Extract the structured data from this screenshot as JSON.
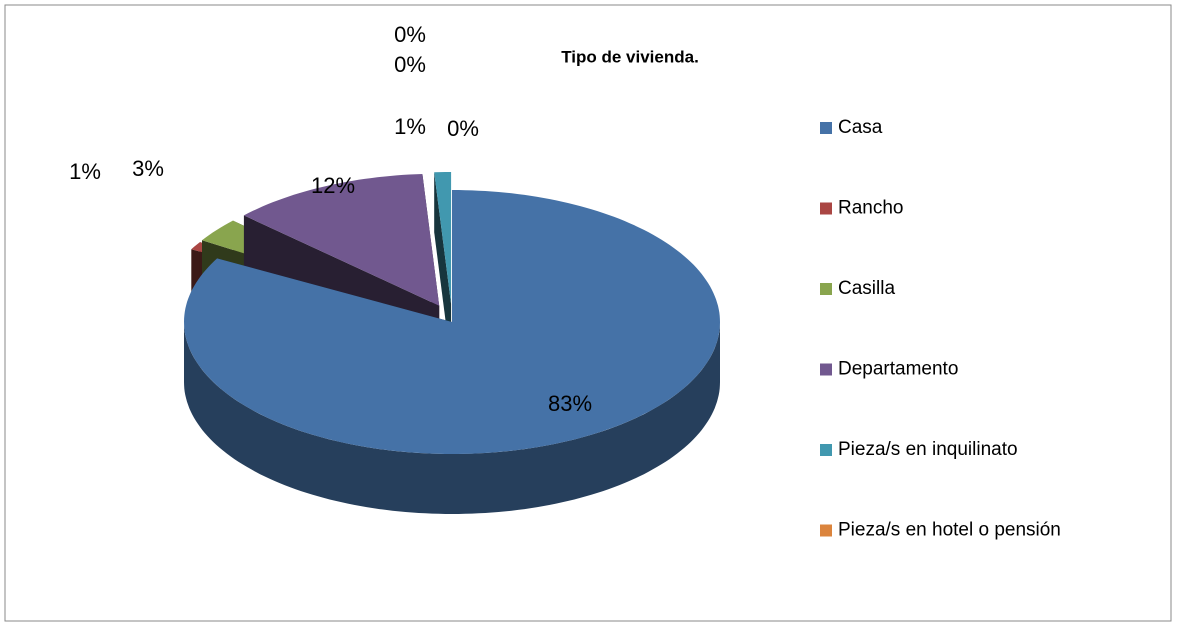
{
  "chart_data": {
    "type": "pie",
    "title": "Tipo de vivienda.",
    "categories": [
      "Casa",
      "Rancho",
      "Casilla",
      "Departamento",
      "Pieza/s en inquilinato",
      "Pieza/s en hotel o pensión",
      null,
      null
    ],
    "values": [
      83,
      1,
      3,
      12,
      1,
      0,
      0,
      0
    ],
    "value_labels": [
      "83%",
      "1%",
      "3%",
      "12%",
      "1%",
      "0%",
      "0%",
      "0%"
    ],
    "colors": [
      "#4572a7",
      "#aa4643",
      "#89a54e",
      "#71588f",
      "#4198af",
      "#db843d",
      "#93a9cf",
      "#d19392"
    ],
    "legend": "right"
  }
}
